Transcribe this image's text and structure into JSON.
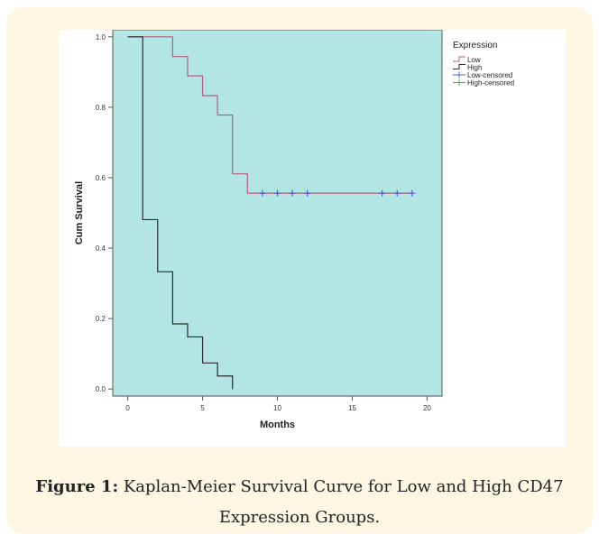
{
  "caption": {
    "label": "Figure 1:",
    "text": "Kaplan-Meier Survival Curve for Low and High CD47 Expression Groups."
  },
  "colors": {
    "card": "#fdf6e3",
    "plot_bg": "#b3e5e5",
    "low": "#b0607a",
    "high": "#2b2b2b",
    "low_censored": "#4f5fd6",
    "high_censored": "#3cb44b"
  },
  "chart_data": {
    "type": "line",
    "step": true,
    "xlabel": "Months",
    "ylabel": "Cum Survival",
    "xlim": [
      -1,
      21
    ],
    "ylim": [
      -0.02,
      1.02
    ],
    "xticks": [
      0,
      5,
      10,
      15,
      20
    ],
    "yticks": [
      0.0,
      0.2,
      0.4,
      0.6,
      0.8,
      1.0
    ],
    "ytick_labels": [
      "0.0",
      "0.2",
      "0.4",
      "0.6",
      "0.8",
      "1.0"
    ],
    "grid": false,
    "legend_title": "Expression",
    "legend_position": "top-right outside",
    "series": [
      {
        "name": "Low",
        "color_key": "low",
        "x": [
          0,
          3,
          4,
          5,
          6,
          7,
          8,
          19
        ],
        "y": [
          1.0,
          0.944,
          0.889,
          0.833,
          0.778,
          0.611,
          0.556,
          0.556
        ]
      },
      {
        "name": "High",
        "color_key": "high",
        "x": [
          0,
          1,
          2,
          3,
          4,
          5,
          6,
          7
        ],
        "y": [
          1.0,
          0.481,
          0.333,
          0.185,
          0.148,
          0.074,
          0.037,
          0.0
        ]
      }
    ],
    "censored": [
      {
        "name": "Low-censored",
        "color_key": "low_censored",
        "x": [
          9,
          10,
          11,
          12,
          17,
          18,
          19
        ],
        "y": [
          0.556,
          0.556,
          0.556,
          0.556,
          0.556,
          0.556,
          0.556
        ]
      },
      {
        "name": "High-censored",
        "color_key": "high_censored",
        "x": [],
        "y": []
      }
    ]
  }
}
